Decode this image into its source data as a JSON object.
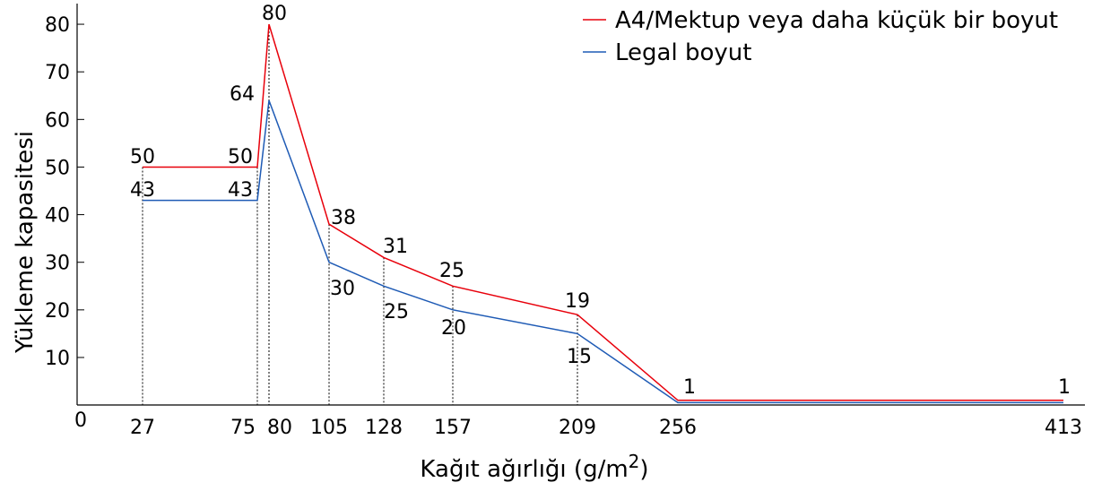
{
  "chart_data": {
    "type": "line",
    "title": "",
    "xlabel": "Kağıt ağırlığı (g/m2)",
    "ylabel": "Yükleme kapasitesi",
    "x_origin_label": "0",
    "x_ticks": [
      27,
      75,
      80,
      105,
      128,
      157,
      209,
      256,
      413
    ],
    "y_ticks": [
      10,
      20,
      30,
      40,
      50,
      60,
      70,
      80
    ],
    "ylim": [
      0,
      84
    ],
    "series": [
      {
        "name": "A4/Mektup veya daha küçük bir boyut",
        "color": "#e8000b",
        "values": [
          50,
          50,
          80,
          38,
          31,
          25,
          19,
          1,
          1
        ],
        "labels": [
          "50",
          "50",
          "80",
          "38",
          "31",
          "25",
          "19",
          "1",
          "1"
        ]
      },
      {
        "name": "Legal boyut",
        "color": "#1f5bb5",
        "values": [
          43,
          43,
          64,
          30,
          25,
          20,
          15,
          0.5,
          0.5
        ],
        "labels": [
          "43",
          "43",
          "64",
          "30",
          "25",
          "20",
          "15",
          "",
          ""
        ]
      }
    ],
    "grid": false,
    "legend": "top-right"
  }
}
